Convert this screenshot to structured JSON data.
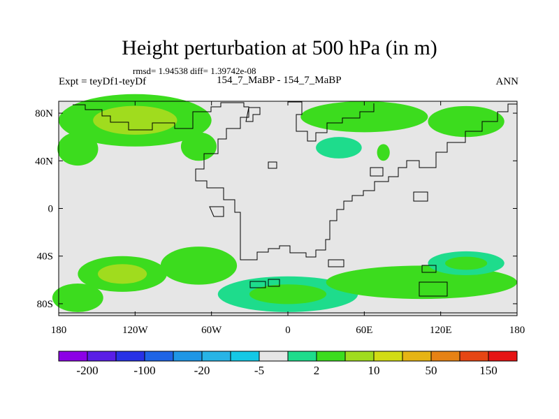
{
  "title": "Height perturbation at 500 hPa (in m)",
  "stats_text": "rmsd= 1.94538 diff= 1.39742e-08",
  "expt_text": "Expt = teyDf1-teyDf",
  "case_text": "154_7_MaBP - 154_7_MaBP",
  "season_text": "ANN",
  "colors": {
    "background_band": "#e6e6e6",
    "palette": [
      "#8c00e6",
      "#5a1ee6",
      "#2832e6",
      "#1e64e6",
      "#1e96e6",
      "#28b4e6",
      "#14c8e6",
      "#e6e6e6",
      "#1edc8c",
      "#3cdc1e",
      "#a0dc1e",
      "#d2dc14",
      "#e6b414",
      "#e68214",
      "#e64614",
      "#e61414"
    ]
  },
  "chart_data": {
    "type": "contour-map",
    "title": "Height perturbation at 500 hPa (in m)",
    "variable": "500 hPa height perturbation",
    "units": "m",
    "xlim": [
      -180,
      180
    ],
    "ylim": [
      -90,
      90
    ],
    "x_ticks": [
      -180,
      -120,
      -60,
      0,
      60,
      120,
      180
    ],
    "x_tick_labels": [
      "180",
      "120W",
      "60W",
      "0",
      "60E",
      "120E",
      "180"
    ],
    "y_ticks": [
      80,
      40,
      0,
      -40,
      -80
    ],
    "y_tick_labels": [
      "80N",
      "40N",
      "0",
      "40S",
      "80S"
    ],
    "colorbar": {
      "levels": [
        -200,
        -150,
        -100,
        -50,
        -20,
        -10,
        -5,
        -2,
        2,
        5,
        10,
        20,
        50,
        100,
        150
      ],
      "labels": [
        "-200",
        "-100",
        "-20",
        "-5",
        "2",
        "10",
        "50",
        "150"
      ],
      "label_values": [
        -200,
        -100,
        -20,
        -5,
        2,
        10,
        50,
        150
      ]
    },
    "anomaly_regions": [
      {
        "name": "north-pacific-positive",
        "lon": -120,
        "lat": 74,
        "lon_halfwidth": 60,
        "lat_halfwidth": 22,
        "bins": [
          9,
          10
        ]
      },
      {
        "name": "north-atlantic-positive",
        "lon": -70,
        "lat": 52,
        "lon_halfwidth": 14,
        "lat_halfwidth": 12,
        "bins": [
          9
        ]
      },
      {
        "name": "western-boundary-positive",
        "lon": -165,
        "lat": 50,
        "lon_halfwidth": 16,
        "lat_halfwidth": 14,
        "bins": [
          9
        ]
      },
      {
        "name": "north-eurasia-positive",
        "lon": 60,
        "lat": 77,
        "lon_halfwidth": 50,
        "lat_halfwidth": 13,
        "bins": [
          9
        ]
      },
      {
        "name": "central-asia-positive",
        "lon": 140,
        "lat": 73,
        "lon_halfwidth": 30,
        "lat_halfwidth": 13,
        "bins": [
          9
        ]
      },
      {
        "name": "mid-latitude-eurasia",
        "lon": 40,
        "lat": 51,
        "lon_halfwidth": 18,
        "lat_halfwidth": 9,
        "bins": [
          8
        ]
      },
      {
        "name": "northeast-spot",
        "lon": 75,
        "lat": 47,
        "lon_halfwidth": 5,
        "lat_halfwidth": 7,
        "bins": [
          9
        ]
      },
      {
        "name": "south-pacific-positive",
        "lon": -130,
        "lat": -55,
        "lon_halfwidth": 35,
        "lat_halfwidth": 15,
        "bins": [
          9,
          10
        ]
      },
      {
        "name": "south-atlantic-positive",
        "lon": -70,
        "lat": -48,
        "lon_halfwidth": 30,
        "lat_halfwidth": 16,
        "bins": [
          9
        ]
      },
      {
        "name": "antarctic-positive",
        "lon": 0,
        "lat": -72,
        "lon_halfwidth": 55,
        "lat_halfwidth": 15,
        "bins": [
          8,
          9
        ]
      },
      {
        "name": "southern-ocean-belt",
        "lon": 105,
        "lat": -62,
        "lon_halfwidth": 75,
        "lat_halfwidth": 14,
        "bins": [
          9
        ]
      },
      {
        "name": "southeast-pacific-positive",
        "lon": 140,
        "lat": -46,
        "lon_halfwidth": 30,
        "lat_halfwidth": 10,
        "bins": [
          8,
          9
        ]
      },
      {
        "name": "south-indian-positive",
        "lon": -165,
        "lat": -75,
        "lon_halfwidth": 20,
        "lat_halfwidth": 12,
        "bins": [
          9
        ]
      }
    ]
  }
}
